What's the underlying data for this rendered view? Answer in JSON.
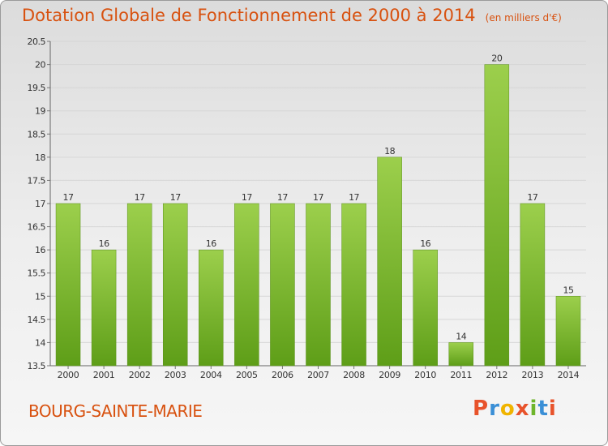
{
  "header": {
    "title": "Dotation Globale de Fonctionnement de 2000 à 2014",
    "unit": "(en milliers d'€)"
  },
  "footer": {
    "commune": "BOURG-SAINTE-MARIE",
    "logo": "Proxiti"
  },
  "colors": {
    "bar_top": "#9ccf4c",
    "bar_bottom": "#5e9e18",
    "title": "#d8510f",
    "logo_letters": [
      "#e8532b",
      "#3a8fd6",
      "#f0b400",
      "#e8532b",
      "#6fb52c",
      "#3a8fd6",
      "#e8532b"
    ]
  },
  "chart_data": {
    "type": "bar",
    "categories": [
      "2000",
      "2001",
      "2002",
      "2003",
      "2004",
      "2005",
      "2006",
      "2007",
      "2008",
      "2009",
      "2010",
      "2011",
      "2012",
      "2013",
      "2014"
    ],
    "values": [
      17,
      16,
      17,
      17,
      16,
      17,
      17,
      17,
      17,
      18,
      16,
      14,
      20,
      17,
      15
    ],
    "title": "Dotation Globale de Fonctionnement de 2000 à 2014",
    "ylim": [
      13.5,
      20.5
    ],
    "yticks": [
      "13.5",
      "14",
      "14.5",
      "15",
      "15.5",
      "16",
      "16.5",
      "17",
      "17.5",
      "18",
      "18.5",
      "19",
      "19.5",
      "20",
      "20.5"
    ],
    "grid": true,
    "legend": "none"
  }
}
